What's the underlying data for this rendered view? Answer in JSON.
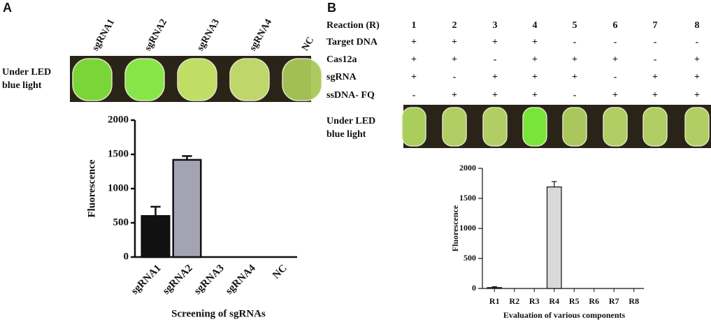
{
  "panel_labels": [
    "A",
    "B"
  ],
  "panel_a": {
    "lanes": [
      "sgRNA1",
      "sgRNA2",
      "sgRNA3",
      "sgRNA4",
      "NC"
    ],
    "photo_label": [
      "Under LED",
      "blue light"
    ]
  },
  "panel_b": {
    "table": {
      "header": [
        "Reaction (R)",
        "1",
        "2",
        "3",
        "4",
        "5",
        "6",
        "7",
        "8"
      ],
      "rows": [
        [
          "Target DNA",
          "+",
          "+",
          "+",
          "+",
          "-",
          "-",
          "-",
          "-"
        ],
        [
          "Cas12a",
          "+",
          "+",
          "-",
          "+",
          "+",
          "+",
          "-",
          "+"
        ],
        [
          "sgRNA",
          "+",
          "-",
          "+",
          "+",
          "+",
          "-",
          "+",
          "+"
        ],
        [
          "ssDNA- FQ",
          "-",
          "+",
          "+",
          "+",
          "-",
          "+",
          "+",
          "+"
        ]
      ]
    },
    "photo_label": [
      "Under LED",
      "blue light"
    ]
  },
  "chart_data": [
    {
      "type": "bar",
      "xlabel": "Screening of sgRNAs",
      "ylabel": "Fluorescence",
      "categories": [
        "sgRNA1",
        "sgRNA2",
        "sgRNA3",
        "sgRNA4",
        "NC"
      ],
      "values": [
        600,
        1420,
        0,
        0,
        0
      ],
      "errors": [
        135,
        55,
        0,
        0,
        0
      ],
      "colors": [
        "#111111",
        "#a3a3b3",
        "#a3a3b3",
        "#a3a3b3",
        "#a3a3b3"
      ],
      "ylim": [
        0,
        2000
      ],
      "yticks": [
        0,
        500,
        1000,
        1500,
        2000
      ]
    },
    {
      "type": "bar",
      "xlabel": "Evaluation of various components",
      "ylabel": "Fluorescence",
      "categories": [
        "R1",
        "R2",
        "R3",
        "R4",
        "R5",
        "R6",
        "R7",
        "R8"
      ],
      "values": [
        15,
        0,
        0,
        1690,
        0,
        0,
        0,
        0
      ],
      "errors": [
        15,
        0,
        0,
        90,
        0,
        0,
        0,
        0
      ],
      "colors": [
        "#d9d9d9",
        "#d9d9d9",
        "#d9d9d9",
        "#d9d9d9",
        "#d9d9d9",
        "#d9d9d9",
        "#d9d9d9",
        "#d9d9d9"
      ],
      "ylim": [
        0,
        2000
      ],
      "yticks": [
        0,
        500,
        1000,
        1500,
        2000
      ]
    }
  ]
}
